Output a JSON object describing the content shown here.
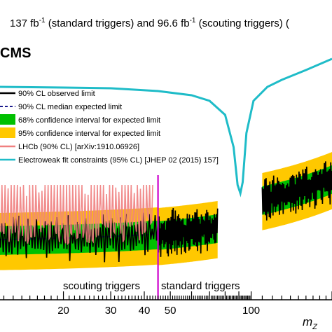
{
  "header": {
    "lumi_std": "137 fb",
    "lumi_std_exp": "-1",
    "lumi_std_suffix": " (standard triggers) and 96.6 fb",
    "lumi_sct_exp": "-1",
    "lumi_sct_suffix": " (scouting triggers)  ("
  },
  "logo": "CMS",
  "legend": [
    {
      "label": "90% CL observed limit",
      "style": "line",
      "color": "#000000"
    },
    {
      "label": "90% CL median expected limit",
      "style": "dashed",
      "color": "#1a1a8c"
    },
    {
      "label": "68% confidence interval for expected limit",
      "style": "box",
      "color": "#00c000"
    },
    {
      "label": "95% confidence interval for expected limit",
      "style": "box",
      "color": "#ffc800"
    },
    {
      "label": "LHCb (90% CL) [arXiv:1910.06926]",
      "style": "line",
      "color": "#f08080"
    },
    {
      "label": "Electroweak fit constraints (95% CL) [JHEP 02 (2015) 157]",
      "style": "line",
      "color": "#1fbcc8"
    }
  ],
  "regions": {
    "left_label": "scouting triggers",
    "right_label": "standard triggers",
    "boundary_x": 45.0,
    "boundary_color": "#cc00cc"
  },
  "xaxis_label": "m",
  "xaxis_label_sub": "Z",
  "chart_data": {
    "type": "line",
    "xscale": "log",
    "xlim": [
      11.2,
      200
    ],
    "xticks": [
      20,
      30,
      40,
      50,
      100
    ],
    "tick_labels": [
      "20",
      "30",
      "40",
      "50",
      "100"
    ],
    "series": [
      {
        "name": "90% CL observed limit",
        "segments": [
          [
            11.5,
            45
          ],
          [
            45,
            75
          ],
          [
            110,
            200
          ]
        ]
      },
      {
        "name": "90% CL median expected limit"
      },
      {
        "name": "68% confidence interval for expected limit"
      },
      {
        "name": "95% confidence interval for expected limit"
      },
      {
        "name": "LHCb (90% CL) [arXiv:1910.06926]",
        "x": [
          11.5,
          43.0
        ]
      },
      {
        "name": "Electroweak fit constraints (95% CL) [JHEP 02 (2015) 157]",
        "x": [
          11.2,
          20,
          30,
          45,
          60,
          70,
          80,
          86,
          89,
          91.2,
          93,
          96,
          102,
          115,
          130,
          160,
          200
        ],
        "relative_level": [
          0.88,
          0.875,
          0.87,
          0.85,
          0.82,
          0.78,
          0.68,
          0.45,
          0.18,
          0.12,
          0.2,
          0.55,
          0.78,
          0.88,
          0.93,
          1.0,
          1.08
        ]
      }
    ]
  }
}
